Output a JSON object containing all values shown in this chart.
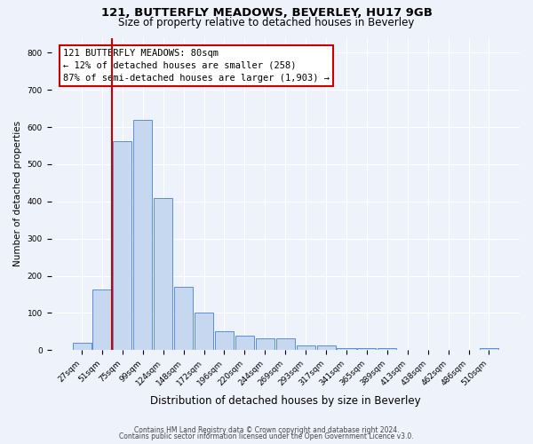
{
  "title1": "121, BUTTERFLY MEADOWS, BEVERLEY, HU17 9GB",
  "title2": "Size of property relative to detached houses in Beverley",
  "xlabel": "Distribution of detached houses by size in Beverley",
  "ylabel": "Number of detached properties",
  "bar_labels": [
    "27sqm",
    "51sqm",
    "75sqm",
    "99sqm",
    "124sqm",
    "148sqm",
    "172sqm",
    "196sqm",
    "220sqm",
    "244sqm",
    "269sqm",
    "293sqm",
    "317sqm",
    "341sqm",
    "365sqm",
    "389sqm",
    "413sqm",
    "438sqm",
    "462sqm",
    "486sqm",
    "510sqm"
  ],
  "bar_values": [
    20,
    163,
    563,
    620,
    410,
    170,
    100,
    50,
    40,
    33,
    33,
    13,
    13,
    5,
    5,
    5,
    0,
    0,
    0,
    0,
    5
  ],
  "bar_color": "#c5d8f0",
  "bar_edge_color": "#5b8fd4",
  "vline_x_index": 2,
  "vline_color": "#cc0000",
  "annotation_title": "121 BUTTERFLY MEADOWS: 80sqm",
  "annotation_line1": "← 12% of detached houses are smaller (258)",
  "annotation_line2": "87% of semi-detached houses are larger (1,903) →",
  "annotation_box_facecolor": "#ffffff",
  "annotation_box_edgecolor": "#cc0000",
  "ylim": [
    0,
    840
  ],
  "yticks": [
    0,
    100,
    200,
    300,
    400,
    500,
    600,
    700,
    800
  ],
  "footer1": "Contains HM Land Registry data © Crown copyright and database right 2024.",
  "footer2": "Contains public sector information licensed under the Open Government Licence v3.0.",
  "fig_facecolor": "#eef2fa",
  "plot_facecolor": "#eef2fa",
  "grid_color": "#ffffff",
  "title1_fontsize": 9.5,
  "title2_fontsize": 8.5,
  "xlabel_fontsize": 8.5,
  "ylabel_fontsize": 7.5,
  "tick_fontsize": 6.5,
  "annotation_fontsize": 7.5,
  "footer_fontsize": 5.5
}
